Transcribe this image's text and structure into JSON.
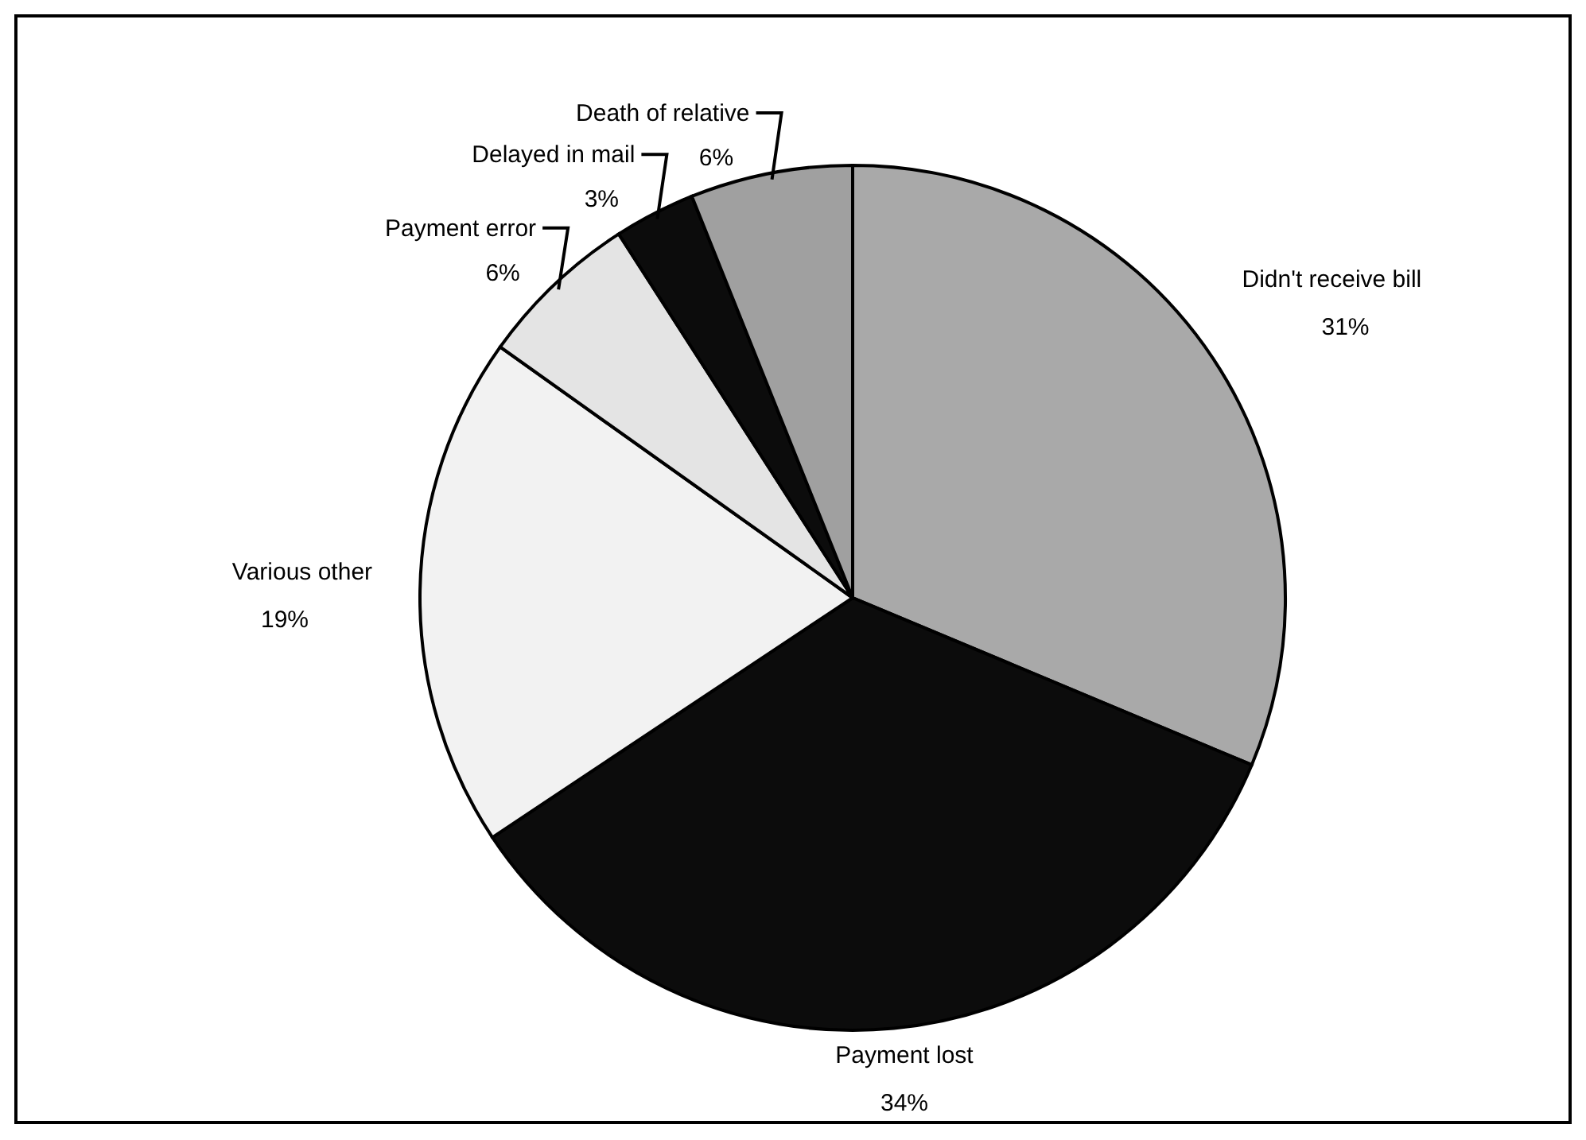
{
  "chart_data": {
    "type": "pie",
    "categories": [
      "Didn't receive bill",
      "Payment lost",
      "Various other",
      "Payment error",
      "Delayed in mail",
      "Death of relative"
    ],
    "values": [
      31,
      34,
      19,
      6,
      3,
      6
    ],
    "value_labels": [
      "31%",
      "34%",
      "19%",
      "6%",
      "3%",
      "6%"
    ],
    "colors": [
      "#a9a9a9",
      "#0c0c0c",
      "#f2f2f2",
      "#e4e4e4",
      "#0c0c0c",
      "#a0a0a0"
    ]
  }
}
